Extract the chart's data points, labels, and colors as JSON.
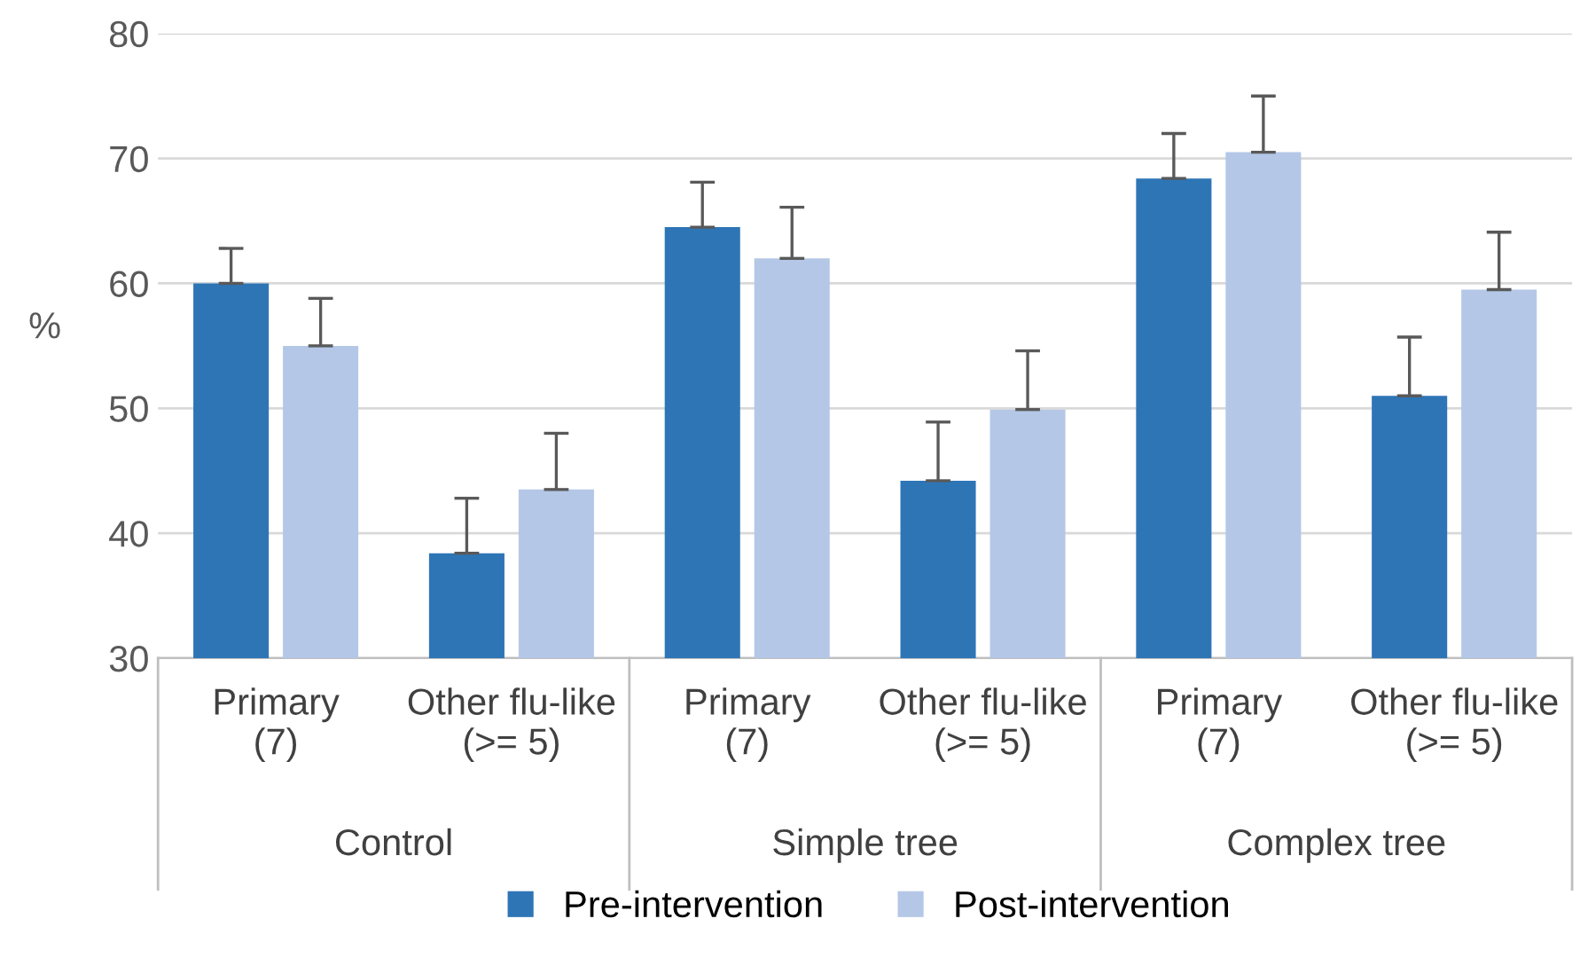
{
  "chart_data": {
    "type": "bar",
    "ylabel": "%",
    "categories": [
      "Primary\n(7)",
      "Other flu-like\n(>= 5)",
      "Primary\n(7)",
      "Other flu-like\n(>= 5)",
      "Primary\n(7)",
      "Other flu-like\n(>= 5)"
    ],
    "series": [
      {
        "name": "Pre-intervention",
        "color": "#2e75b6",
        "values": [
          60.0,
          38.4,
          64.5,
          44.2,
          68.4,
          51.0
        ],
        "errors": [
          [
            60.0,
            62.8
          ],
          [
            38.4,
            42.8
          ],
          [
            64.5,
            68.1
          ],
          [
            44.2,
            48.9
          ],
          [
            68.4,
            72.0
          ],
          [
            51.0,
            55.7
          ]
        ]
      },
      {
        "name": "Post-intervention",
        "color": "#b4c7e7",
        "values": [
          55.0,
          43.5,
          62.0,
          49.9,
          70.5,
          59.5
        ],
        "errors": [
          [
            55.0,
            58.8
          ],
          [
            43.5,
            48.0
          ],
          [
            62.0,
            66.1
          ],
          [
            49.9,
            54.6
          ],
          [
            70.5,
            75.0
          ],
          [
            59.5,
            64.1
          ]
        ]
      }
    ],
    "annotations": [
      "Control",
      "Simple tree",
      "Complex tree"
    ],
    "ylim": [
      30,
      80
    ],
    "yticks": [
      30,
      40,
      50,
      60,
      70,
      80
    ],
    "grid": "y",
    "legend": "bottom"
  }
}
